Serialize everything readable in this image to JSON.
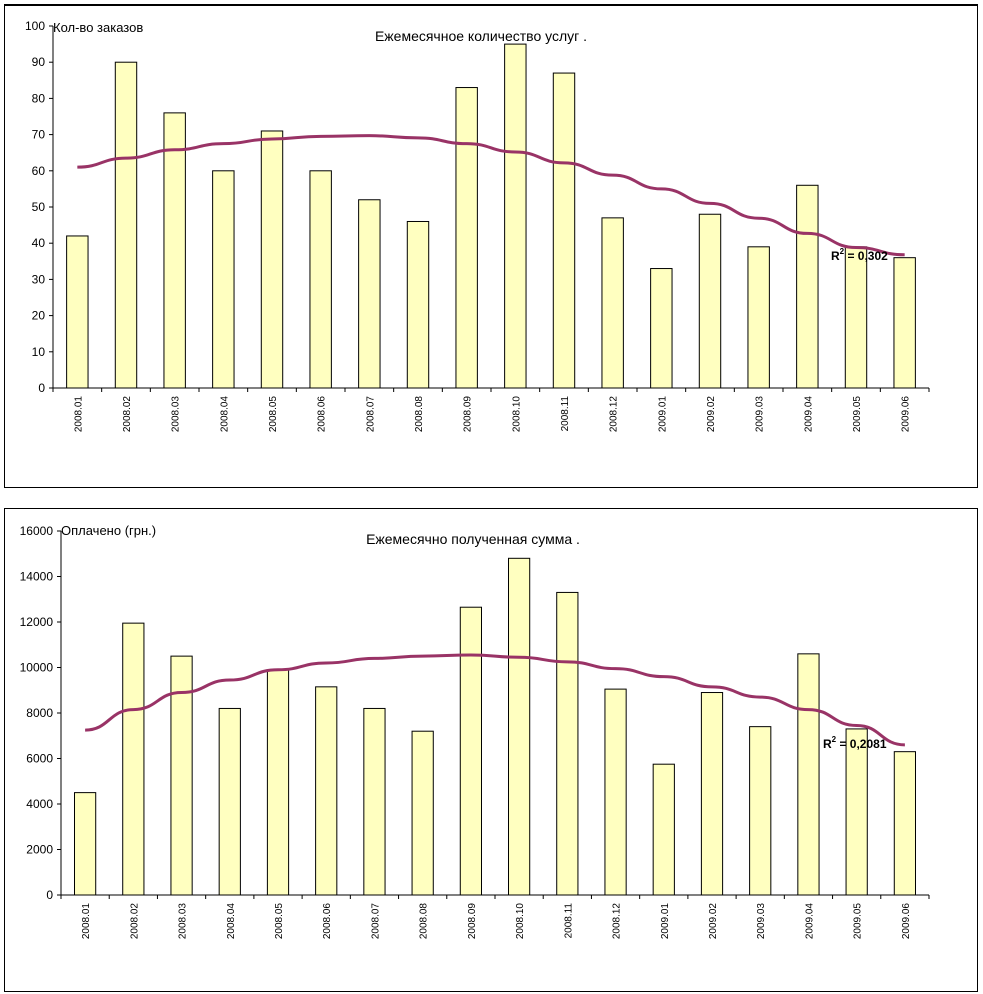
{
  "chart_data": [
    {
      "type": "bar",
      "title": "Ежемесячное количество услуг .",
      "ylabel": "Кол-во заказов",
      "xlabel": "",
      "ylim": [
        0,
        100
      ],
      "yticks": [
        0,
        10,
        20,
        30,
        40,
        50,
        60,
        70,
        80,
        90,
        100
      ],
      "categories": [
        "2008.01",
        "2008.02",
        "2008.03",
        "2008.04",
        "2008.05",
        "2008.06",
        "2008.07",
        "2008.08",
        "2008.09",
        "2008.10",
        "2008.11",
        "2008.12",
        "2009.01",
        "2009.02",
        "2009.03",
        "2009.04",
        "2009.05",
        "2009.06"
      ],
      "values": [
        42,
        90,
        76,
        60,
        71,
        60,
        52,
        46,
        83,
        95,
        87,
        47,
        33,
        48,
        39,
        56,
        39,
        36
      ],
      "trendline": {
        "type": "polynomial",
        "r2_label": "R",
        "r2_sup": "2",
        "r2_value": " = 0,302",
        "values": [
          61,
          63.5,
          65.8,
          67.5,
          68.8,
          69.5,
          69.7,
          69.1,
          67.5,
          65.2,
          62.2,
          58.8,
          55.0,
          51.0,
          46.9,
          42.7,
          38.8,
          36.8
        ]
      },
      "grid": false,
      "legend": "none",
      "colors": {
        "bar_fill": "#ffffc0",
        "bar_stroke": "#000000",
        "trend": "#993366"
      }
    },
    {
      "type": "bar",
      "title": "Ежемесячно полученная сумма .",
      "ylabel": "Оплачено (грн.)",
      "xlabel": "",
      "ylim": [
        0,
        16000
      ],
      "yticks": [
        0,
        2000,
        4000,
        6000,
        8000,
        10000,
        12000,
        14000,
        16000
      ],
      "categories": [
        "2008.01",
        "2008.02",
        "2008.03",
        "2008.04",
        "2008.05",
        "2008.06",
        "2008.07",
        "2008.08",
        "2008.09",
        "2008.10",
        "2008.11",
        "2008.12",
        "2009.01",
        "2009.02",
        "2009.03",
        "2009.04",
        "2009.05",
        "2009.06"
      ],
      "values": [
        4500,
        11950,
        10500,
        8200,
        9900,
        9150,
        8200,
        7200,
        12650,
        14800,
        13300,
        9050,
        5750,
        8900,
        7400,
        10600,
        7300,
        6300
      ],
      "trendline": {
        "type": "polynomial",
        "r2_label": "R",
        "r2_sup": "2",
        "r2_value": " = 0,2081",
        "values": [
          7250,
          8150,
          8900,
          9450,
          9900,
          10200,
          10400,
          10500,
          10550,
          10450,
          10250,
          9950,
          9600,
          9150,
          8700,
          8150,
          7450,
          6600
        ]
      },
      "grid": false,
      "legend": "none",
      "colors": {
        "bar_fill": "#ffffc0",
        "bar_stroke": "#000000",
        "trend": "#993366"
      }
    }
  ]
}
